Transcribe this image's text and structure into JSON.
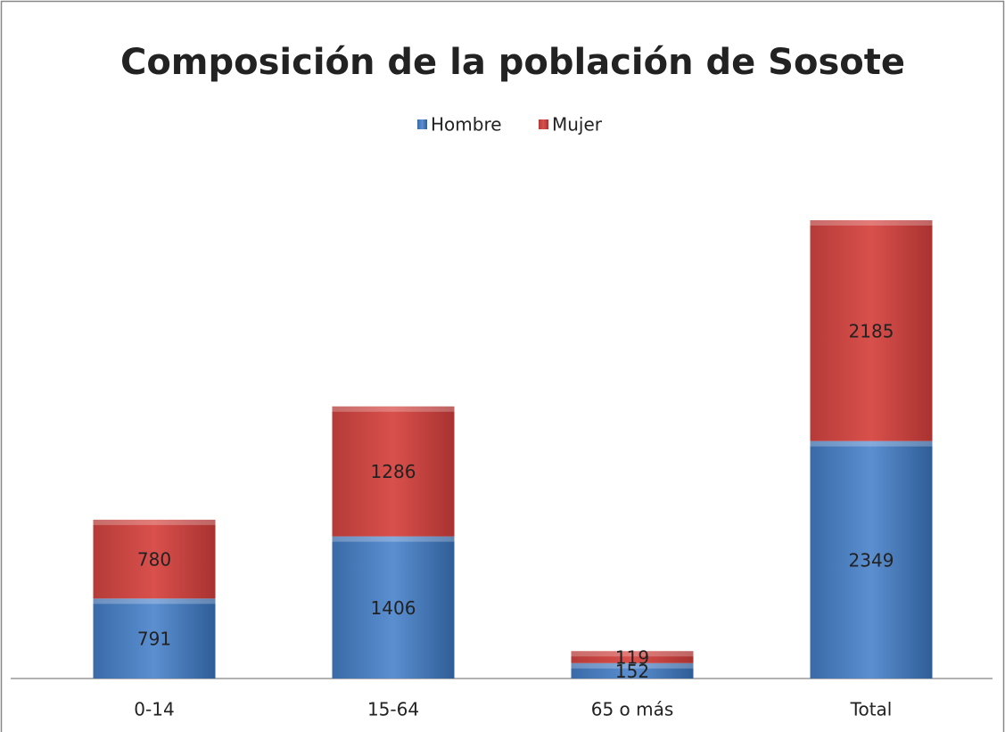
{
  "chart_data": {
    "type": "stacked_bar",
    "title": "Composición de la población de Sosote",
    "categories": [
      "0-14",
      "15-64",
      "65 o más",
      "Total"
    ],
    "series": [
      {
        "name": "Hombre",
        "color": "#4f81bd",
        "values": [
          791,
          1406,
          152,
          2349
        ]
      },
      {
        "name": "Mujer",
        "color": "#c0504d",
        "values": [
          780,
          1286,
          119,
          2185
        ]
      }
    ],
    "legend": "top"
  }
}
